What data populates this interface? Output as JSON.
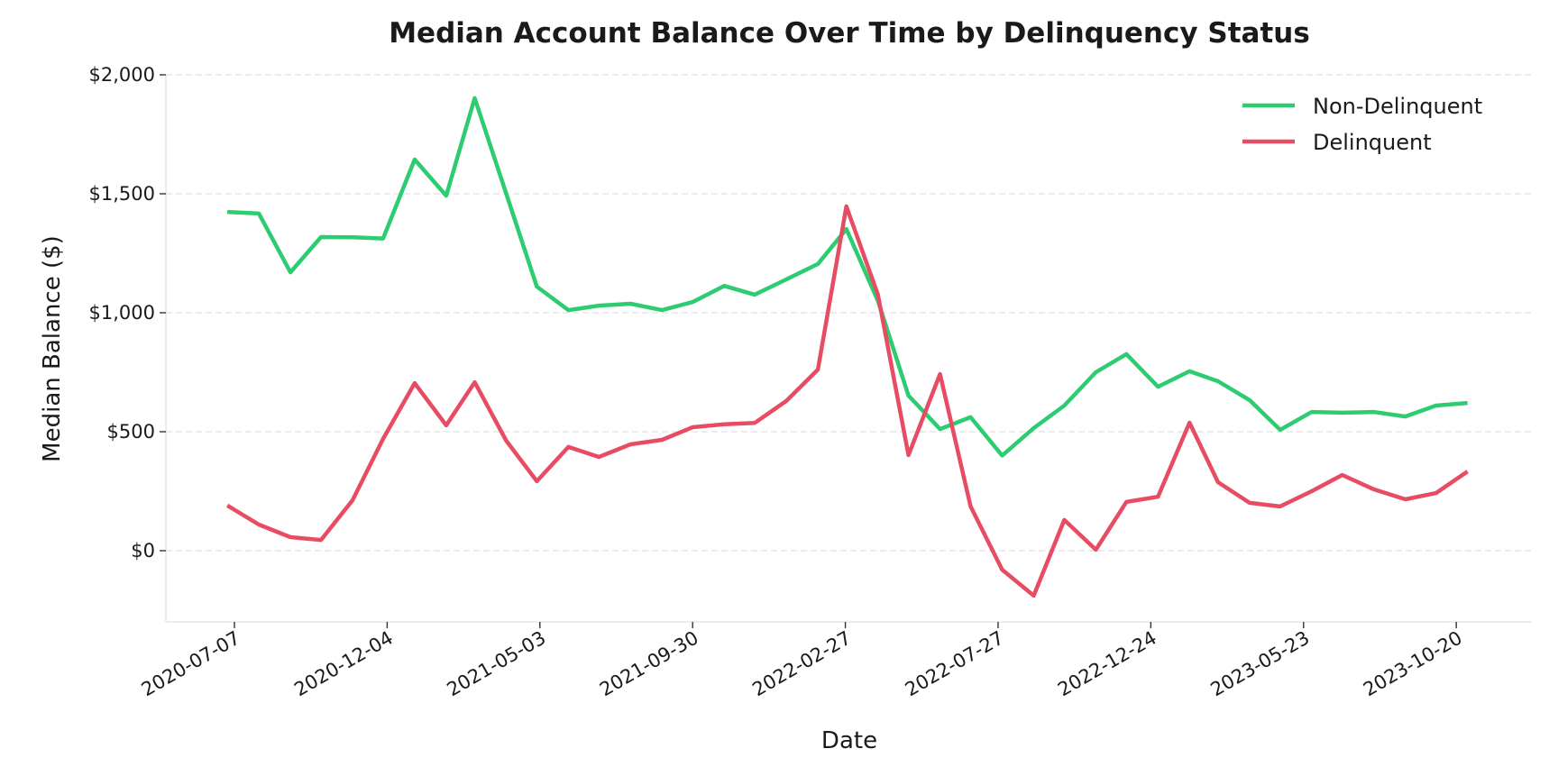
{
  "chart_data": {
    "type": "line",
    "title": "Median Account Balance Over Time by Delinquency Status",
    "xlabel": "Date",
    "ylabel": "Median Balance ($)",
    "ylim": [
      -290,
      2030
    ],
    "yticks": [
      0,
      500,
      1000,
      1500,
      2000
    ],
    "ytick_labels": [
      "$0",
      "$500",
      "$1,000",
      "$1,500",
      "$2,000"
    ],
    "xticks": [
      "2020-07-07",
      "2020-12-04",
      "2021-05-03",
      "2021-09-30",
      "2022-02-27",
      "2022-07-27",
      "2022-12-24",
      "2023-05-23",
      "2023-10-20"
    ],
    "grid": "y-dashed",
    "legend_position": "upper right",
    "x": [
      "2020-06-30",
      "2020-07-31",
      "2020-08-31",
      "2020-09-30",
      "2020-10-31",
      "2020-11-30",
      "2020-12-31",
      "2021-01-31",
      "2021-02-28",
      "2021-03-31",
      "2021-04-30",
      "2021-05-31",
      "2021-06-30",
      "2021-07-31",
      "2021-08-31",
      "2021-09-30",
      "2021-10-31",
      "2021-11-30",
      "2021-12-31",
      "2022-01-31",
      "2022-02-28",
      "2022-03-31",
      "2022-04-30",
      "2022-05-31",
      "2022-06-30",
      "2022-07-31",
      "2022-08-31",
      "2022-09-30",
      "2022-10-31",
      "2022-11-30",
      "2022-12-31",
      "2023-01-31",
      "2023-02-28",
      "2023-03-31",
      "2023-04-30",
      "2023-05-31",
      "2023-06-30",
      "2023-07-31",
      "2023-08-31",
      "2023-09-30",
      "2023-10-31"
    ],
    "series": [
      {
        "name": "Non-Delinquent",
        "color": "#2ecc71",
        "values": [
          1424,
          1417,
          1170,
          1318,
          1317,
          1312,
          1644,
          1492,
          1902,
          1500,
          1110,
          1011,
          1030,
          1038,
          1011,
          1045,
          1113,
          1076,
          1140,
          1205,
          1352,
          1050,
          652,
          511,
          561,
          400,
          515,
          610,
          750,
          826,
          689,
          754,
          712,
          633,
          508,
          583,
          580,
          583,
          564,
          610,
          621
        ]
      },
      {
        "name": "Delinquent",
        "color": "#e74c63",
        "values": [
          190,
          110,
          57,
          45,
          212,
          470,
          704,
          527,
          708,
          462,
          292,
          436,
          394,
          447,
          466,
          519,
          531,
          537,
          629,
          761,
          1447,
          1076,
          402,
          742,
          186,
          -80,
          -189,
          129,
          4,
          205,
          227,
          538,
          288,
          201,
          186,
          250,
          318,
          258,
          216,
          242,
          333
        ]
      }
    ]
  }
}
